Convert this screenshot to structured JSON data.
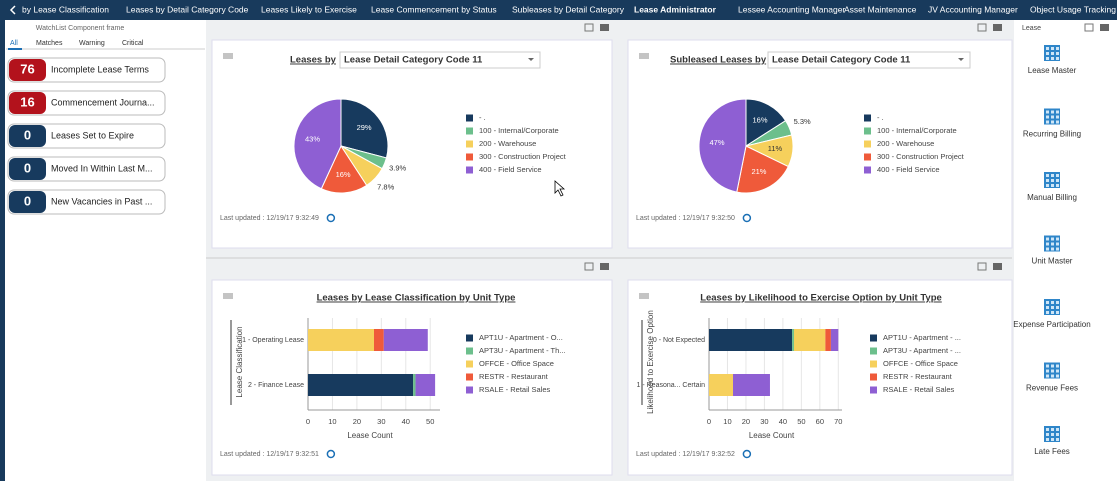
{
  "header": {
    "tabs": [
      "by Lease Classification",
      "Leases by Detail Category Code",
      "Leases Likely to Exercise",
      "Lease Commencement by Status",
      "Subleases by Detail Category",
      "Lease Administrator",
      "Lessee Accounting Manager",
      "Asset Maintenance",
      "JV Accounting Manager",
      "Object Usage Tracking"
    ],
    "active_tab": 5
  },
  "watchlist": {
    "title": "WatchList Component frame",
    "filters": [
      "All",
      "Matches",
      "Warning",
      "Critical"
    ],
    "items": [
      {
        "count": 76,
        "label": "Incomplete Lease Terms",
        "color": "#b3121c"
      },
      {
        "count": 16,
        "label": "Commencement Journa...",
        "color": "#b3121c"
      },
      {
        "count": 0,
        "label": "Leases Set to Expire",
        "color": "#173a5e"
      },
      {
        "count": 0,
        "label": "Moved In Within Last M...",
        "color": "#173a5e"
      },
      {
        "count": 0,
        "label": "New Vacancies in Past ...",
        "color": "#173a5e"
      }
    ]
  },
  "charts": [
    {
      "type": "pie",
      "title": "Leases by",
      "selector": "Lease Detail Category Code 11",
      "categories": [
        "- .",
        "100 - Internal/Corporate",
        "200 - Warehouse",
        "300 - Construction Project",
        "400 - Field Service"
      ],
      "values": [
        29,
        3.9,
        7.8,
        16,
        43
      ],
      "value_labels": [
        "29%",
        "3.9%",
        "7.8%",
        "16%",
        "43%"
      ],
      "colors": [
        "#173a5e",
        "#6cbf8c",
        "#f6d05c",
        "#ef5a3a",
        "#8e5fd3"
      ],
      "footer": "Last updated : 12/19/17 9:32:49"
    },
    {
      "type": "pie",
      "title": "Subleased Leases by",
      "selector": "Lease Detail Category Code 11",
      "categories": [
        "- .",
        "100 - Internal/Corporate",
        "200 - Warehouse",
        "300 - Construction Project",
        "400 - Field Service"
      ],
      "values": [
        16,
        5.3,
        11,
        21,
        47
      ],
      "value_labels": [
        "16%",
        "5.3%",
        "11%",
        "21%",
        "47%"
      ],
      "colors": [
        "#173a5e",
        "#6cbf8c",
        "#f6d05c",
        "#ef5a3a",
        "#8e5fd3"
      ],
      "footer": "Last updated : 12/19/17 9:32:50"
    },
    {
      "type": "bar",
      "title": "Leases by Lease Classification by Unit Type",
      "categories": [
        "1 - Operating Lease",
        "2 - Finance Lease"
      ],
      "series": [
        {
          "name": "APT1U - Apartment - O...",
          "color": "#173a5e",
          "values": [
            0,
            43
          ]
        },
        {
          "name": "APT3U - Apartment - Th...",
          "color": "#6cbf8c",
          "values": [
            0,
            1
          ]
        },
        {
          "name": "OFFCE - Office Space",
          "color": "#f6d05c",
          "values": [
            27,
            0
          ]
        },
        {
          "name": "RESTR - Restaurant",
          "color": "#ef5a3a",
          "values": [
            4,
            0
          ]
        },
        {
          "name": "RSALE - Retail Sales",
          "color": "#8e5fd3",
          "values": [
            18,
            8
          ]
        }
      ],
      "xlim": [
        0,
        54
      ],
      "xticks": [
        0,
        10,
        20,
        30,
        40,
        50
      ],
      "xlabel": "Lease Count",
      "ylabel": "Lease Classification",
      "footer": "Last updated : 12/19/17 9:32:51"
    },
    {
      "type": "bar",
      "title": "Leases by Likelihood to Exercise Option by Unit Type",
      "categories": [
        "0 - Not Expected",
        "1 - Reasona... Certain"
      ],
      "series": [
        {
          "name": "APT1U - Apartment - ...",
          "color": "#173a5e",
          "values": [
            45,
            0
          ]
        },
        {
          "name": "APT3U - Apartment - ...",
          "color": "#6cbf8c",
          "values": [
            1,
            0
          ]
        },
        {
          "name": "OFFCE - Office Space",
          "color": "#f6d05c",
          "values": [
            17,
            13
          ]
        },
        {
          "name": "RESTR - Restaurant",
          "color": "#ef5a3a",
          "values": [
            3,
            0
          ]
        },
        {
          "name": "RSALE - Retail Sales",
          "color": "#8e5fd3",
          "values": [
            4,
            20
          ]
        }
      ],
      "xlim": [
        0,
        72
      ],
      "xticks": [
        0,
        10,
        20,
        30,
        40,
        50,
        60,
        70
      ],
      "xlabel": "Lease Count",
      "ylabel": "Likelihood to Exercise Option",
      "footer": "Last updated : 12/19/17 9:32:52"
    }
  ],
  "sidebar": {
    "title": "Lease",
    "items": [
      "Lease Master",
      "Recurring Billing",
      "Manual Billing",
      "Unit Master",
      "Expense Participation",
      "Revenue Fees",
      "Late Fees"
    ]
  }
}
